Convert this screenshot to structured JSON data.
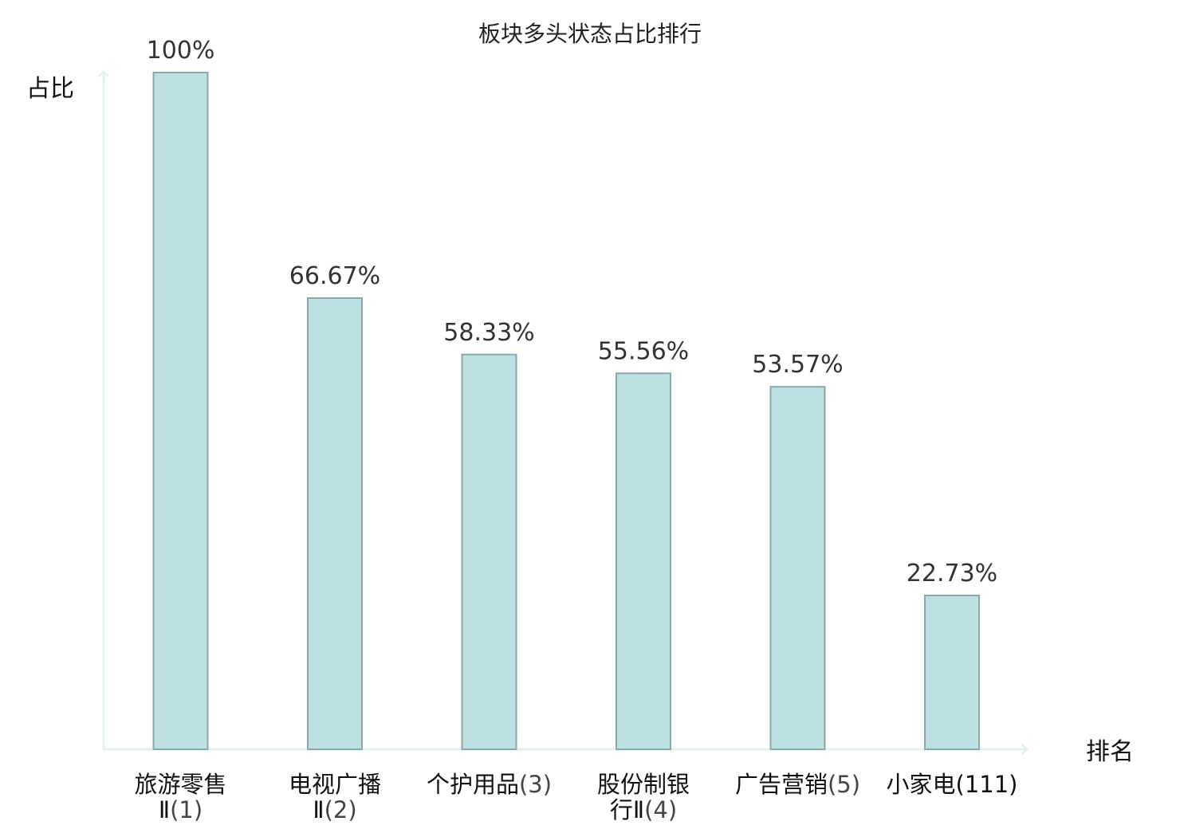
{
  "chart_data": {
    "type": "bar",
    "title": "板块多头状态占比排行",
    "ylabel": "占比",
    "xlabel": "排名",
    "ylim": [
      0,
      100
    ],
    "grid": false,
    "legend": "none",
    "categories": [
      {
        "name_lines": [
          "旅游零售",
          "Ⅱ"
        ],
        "rank": "(1)",
        "highlight": false
      },
      {
        "name_lines": [
          "电视广播",
          "Ⅱ"
        ],
        "rank": "(2)",
        "highlight": false
      },
      {
        "name_lines": [
          "个护用品"
        ],
        "rank": "(3)",
        "highlight": false
      },
      {
        "name_lines": [
          "股份制银",
          "行Ⅱ"
        ],
        "rank": "(4)",
        "highlight": false
      },
      {
        "name_lines": [
          "广告营销"
        ],
        "rank": "(5)",
        "highlight": false
      },
      {
        "name_lines": [
          "小家电"
        ],
        "rank": "(111)",
        "highlight": true
      }
    ],
    "values": [
      100,
      66.67,
      58.33,
      55.56,
      53.57,
      22.73
    ],
    "value_labels": [
      "100%",
      "66.67%",
      "58.33%",
      "55.56%",
      "53.57%",
      "22.73%"
    ],
    "colors": {
      "bar_fill": "#bde0e2",
      "bar_stroke": "#8aa8ab",
      "axis": "#e0f2f1",
      "highlight": "#e02020"
    }
  }
}
